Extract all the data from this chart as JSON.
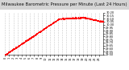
{
  "title": "Milwaukee Barometric Pressure per Minute (Last 24 Hours)",
  "line_color": "#ff0000",
  "bg_color": "#ffffff",
  "plot_bg": "#ffffff",
  "title_bg": "#d4d4d4",
  "grid_color": "#bbbbbb",
  "y_min": 29.5,
  "y_max": 30.2,
  "y_ticks": [
    29.5,
    29.55,
    29.6,
    29.65,
    29.7,
    29.75,
    29.8,
    29.85,
    29.9,
    29.95,
    30.0,
    30.05,
    30.1,
    30.15,
    30.2
  ],
  "num_points": 1440,
  "title_fontsize": 3.8,
  "tick_fontsize": 2.5,
  "marker_size": 0.6,
  "x_labels": [
    "0",
    "1",
    "2",
    "3",
    "4",
    "5",
    "6",
    "7",
    "8",
    "9",
    "10",
    "11",
    "12",
    "13",
    "14",
    "15",
    "16",
    "17",
    "18",
    "19",
    "20",
    "21",
    "22",
    "23",
    "0"
  ],
  "x_label_step": 60
}
